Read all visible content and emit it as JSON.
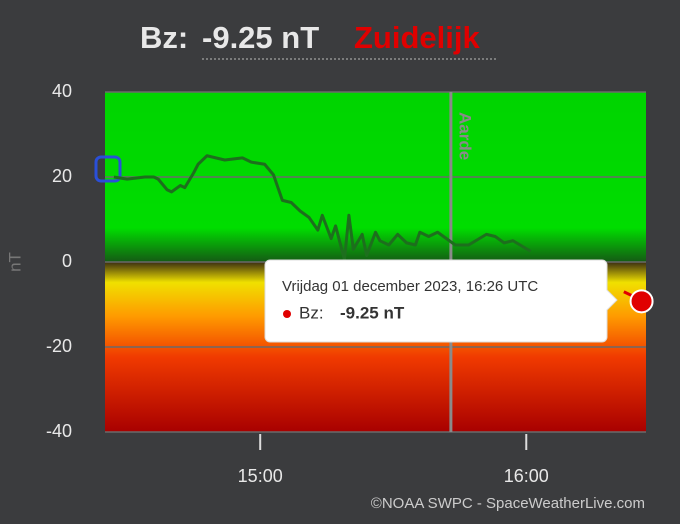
{
  "chart_data": {
    "type": "line",
    "title": {
      "label": "Bz:",
      "value": "-9.25 nT",
      "direction": "Zuidelijk"
    },
    "y_label": "nT",
    "credit": "©NOAA SWPC - SpaceWeatherLive.com",
    "x": [
      "14:27",
      "14:30",
      "14:34",
      "14:36",
      "14:37",
      "14:39",
      "14:40",
      "14:42",
      "14:43",
      "14:45",
      "14:46",
      "14:48",
      "14:50",
      "14:52",
      "14:56",
      "14:58",
      "15:01",
      "15:03",
      "15:05",
      "15:07",
      "15:09",
      "15:11",
      "15:13",
      "15:14",
      "15:16",
      "15:17",
      "15:19",
      "15:20",
      "15:21",
      "15:23",
      "15:24",
      "15:26",
      "15:27",
      "15:29",
      "15:31",
      "15:33",
      "15:35",
      "15:36",
      "15:38",
      "15:40",
      "15:44",
      "15:47",
      "15:51",
      "15:53",
      "15:55",
      "15:57",
      "16:01",
      "16:10",
      "16:22",
      "16:24",
      "16:26"
    ],
    "series": [
      {
        "name": "Bz",
        "color": "#1d6f1d",
        "negative_color": "#e00000",
        "values": [
          20,
          19.5,
          20,
          20,
          19.5,
          17,
          16.5,
          18,
          17.5,
          21,
          23,
          25,
          24.5,
          24,
          24.5,
          23.5,
          23,
          20.5,
          14.5,
          14,
          12,
          10.5,
          7.5,
          11,
          5.5,
          8.5,
          0.5,
          11,
          3,
          6.5,
          1.5,
          7,
          5,
          4,
          6.5,
          4.5,
          4,
          7,
          6,
          7,
          4,
          4,
          6.5,
          6,
          4.5,
          5,
          2.5,
          null,
          -7,
          -8,
          -9.25
        ]
      }
    ],
    "xlim": [
      "14:25",
      "16:27"
    ],
    "xticks": [
      "15:00",
      "16:00"
    ],
    "ylim": [
      -40,
      40
    ],
    "yticks": [
      -40,
      -20,
      0,
      20,
      40
    ],
    "grid": true,
    "annotations": [
      {
        "x": "15:43",
        "text": "Aarde"
      }
    ],
    "tooltip": {
      "date": "Vrijdag 01 december 2023, 16:26 UTC",
      "label": "Bz:",
      "value": "-9.25 nT"
    },
    "marker_color": "#e00000"
  }
}
